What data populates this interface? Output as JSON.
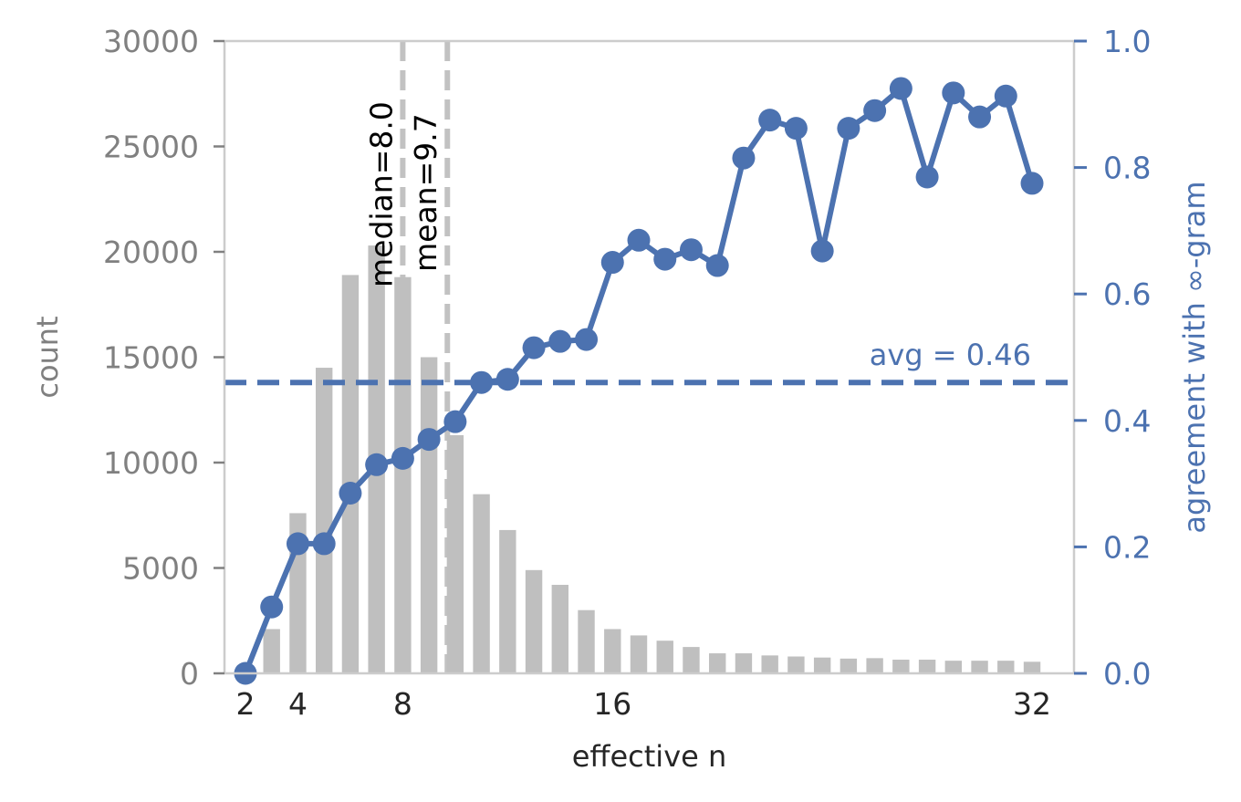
{
  "chart_data": {
    "type": "bar+line",
    "xlabel": "effective n",
    "ylabel_left": "count",
    "ylabel_right": "agreement with ∞-gram",
    "xlim": [
      1.2,
      33.6
    ],
    "ylim_left": [
      0,
      30000
    ],
    "ylim_right": [
      0,
      1.0
    ],
    "x_ticks": [
      2,
      4,
      8,
      16,
      32
    ],
    "y_left_ticks": [
      0,
      5000,
      10000,
      15000,
      20000,
      25000,
      30000
    ],
    "y_right_ticks": [
      "0.0",
      "0.2",
      "0.4",
      "0.6",
      "0.8",
      "1.0"
    ],
    "colors": {
      "bars": "#bfbfbf",
      "line": "#4c72b0",
      "vlines": "#bfbfbf",
      "left_axis": "#808080"
    },
    "histogram": {
      "x": [
        2,
        3,
        4,
        5,
        6,
        7,
        8,
        9,
        10,
        11,
        12,
        13,
        14,
        15,
        16,
        17,
        18,
        19,
        20,
        21,
        22,
        23,
        24,
        25,
        26,
        27,
        28,
        29,
        30,
        31,
        32
      ],
      "values": [
        0,
        2100,
        7600,
        14500,
        18900,
        20300,
        18800,
        15000,
        11300,
        8500,
        6800,
        4900,
        4200,
        3000,
        2100,
        1800,
        1550,
        1250,
        950,
        950,
        850,
        800,
        750,
        700,
        720,
        650,
        650,
        600,
        600,
        600,
        550
      ]
    },
    "agreement": {
      "x": [
        2,
        3,
        4,
        5,
        6,
        7,
        8,
        9,
        10,
        11,
        12,
        13,
        14,
        15,
        16,
        17,
        18,
        19,
        20,
        21,
        22,
        23,
        24,
        25,
        26,
        27,
        28,
        29,
        30,
        31,
        32
      ],
      "values": [
        0.0,
        0.105,
        0.205,
        0.205,
        0.285,
        0.33,
        0.34,
        0.37,
        0.398,
        0.46,
        0.465,
        0.515,
        0.525,
        0.528,
        0.65,
        0.685,
        0.655,
        0.67,
        0.645,
        0.815,
        0.875,
        0.862,
        0.668,
        0.862,
        0.89,
        0.925,
        0.785,
        0.918,
        0.88,
        0.913,
        0.775
      ]
    },
    "vlines": [
      {
        "x": 8.0,
        "label": "median=8.0"
      },
      {
        "x": 9.7,
        "label": "mean=9.7"
      }
    ],
    "hline": {
      "y": 0.46,
      "label": "avg = 0.46"
    }
  }
}
